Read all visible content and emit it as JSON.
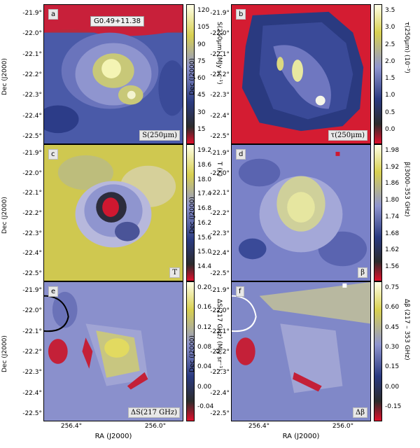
{
  "title_box": "G0.49+11.38",
  "y_axis_label": "Dec (J2000)",
  "x_axis_label": "RA (J2000)",
  "y_ticks": [
    "-21.9°",
    "-22.0°",
    "-22.1°",
    "-22.2°",
    "-22.3°",
    "-22.4°",
    "-22.5°"
  ],
  "x_ticks": [
    "256.4°",
    "256.0°"
  ],
  "panels": [
    {
      "letter": "a",
      "quantity": "S(250μm)",
      "cbar_label": "S(250μm) (MJy sr⁻¹)",
      "ticks": [
        "120",
        "105",
        "90",
        "75",
        "60",
        "45",
        "30",
        "15"
      ],
      "colors": {
        "bg": "#4a5aa8",
        "mid": "#8f95cf",
        "hi": "#f2f2a0",
        "cold": "#c8203a"
      }
    },
    {
      "letter": "b",
      "quantity": "τ(250μm)",
      "cbar_label": "τ(250μm) (10⁻³)",
      "ticks": [
        "3.5",
        "3.0",
        "2.5",
        "2.0",
        "1.5",
        "1.0",
        "0.5",
        "0.0"
      ],
      "colors": {
        "bg": "#2a3a80",
        "mid": "#6f77c0",
        "hi": "#f7f7c8",
        "cold": "#d41c32"
      }
    },
    {
      "letter": "c",
      "quantity": "T",
      "cbar_label": "T (K)",
      "ticks": [
        "19.2",
        "18.6",
        "18.0",
        "17.4",
        "16.8",
        "16.2",
        "15.6",
        "15.0",
        "14.4"
      ],
      "colors": {
        "bg": "#cfc850",
        "mid": "#8f95cf",
        "hi": "#e8e0a0",
        "cold": "#d01830"
      }
    },
    {
      "letter": "d",
      "quantity": "β",
      "cbar_label": "β(3000–353 GHz)",
      "ticks": [
        "1.98",
        "1.92",
        "1.86",
        "1.80",
        "1.74",
        "1.68",
        "1.62",
        "1.56"
      ],
      "colors": {
        "bg": "#7a82c8",
        "mid": "#a4a8d8",
        "hi": "#e6e6a0",
        "cold": "#3a4a98"
      }
    },
    {
      "letter": "e",
      "quantity": "ΔS(217 GHz)",
      "cbar_label": "ΔS(217 GHz) (MJy sr⁻¹)",
      "ticks": [
        "0.20",
        "0.16",
        "0.12",
        "0.08",
        "0.04",
        "0.00",
        "-0.04"
      ],
      "colors": {
        "bg": "#8088c8",
        "mid": "#a0a4d4",
        "hi": "#e2da60",
        "cold": "#c42038"
      }
    },
    {
      "letter": "f",
      "quantity": "Δβ",
      "cbar_label": "Δβ (217 – 353 GHz)",
      "ticks": [
        "0.75",
        "0.60",
        "0.45",
        "0.30",
        "0.15",
        "0.00",
        "-0.15"
      ],
      "colors": {
        "bg": "#8088c8",
        "mid": "#a0a4d4",
        "hi": "#e8e4a8",
        "cold": "#c42038"
      }
    }
  ],
  "chart_data": [
    {
      "type": "heatmap",
      "title": "G0.49+11.38",
      "quantity": "S(250μm)",
      "unit": "MJy sr⁻¹",
      "xlabel": "RA (J2000)",
      "ylabel": "Dec (J2000)",
      "range": [
        0,
        125
      ],
      "peak_value": 120
    },
    {
      "type": "heatmap",
      "quantity": "τ(250μm)",
      "unit": "10⁻³",
      "range": [
        -0.3,
        3.8
      ],
      "peak_value": 3.5
    },
    {
      "type": "heatmap",
      "quantity": "T",
      "unit": "K",
      "range": [
        14.4,
        19.4
      ],
      "minimum_value": 14.4
    },
    {
      "type": "heatmap",
      "quantity": "β",
      "unit": "3000–353 GHz",
      "range": [
        1.54,
        2.0
      ]
    },
    {
      "type": "heatmap",
      "quantity": "ΔS(217 GHz)",
      "unit": "MJy sr⁻¹",
      "range": [
        -0.06,
        0.22
      ]
    },
    {
      "type": "heatmap",
      "quantity": "Δβ",
      "unit": "217 – 353 GHz",
      "range": [
        -0.2,
        0.78
      ]
    }
  ]
}
